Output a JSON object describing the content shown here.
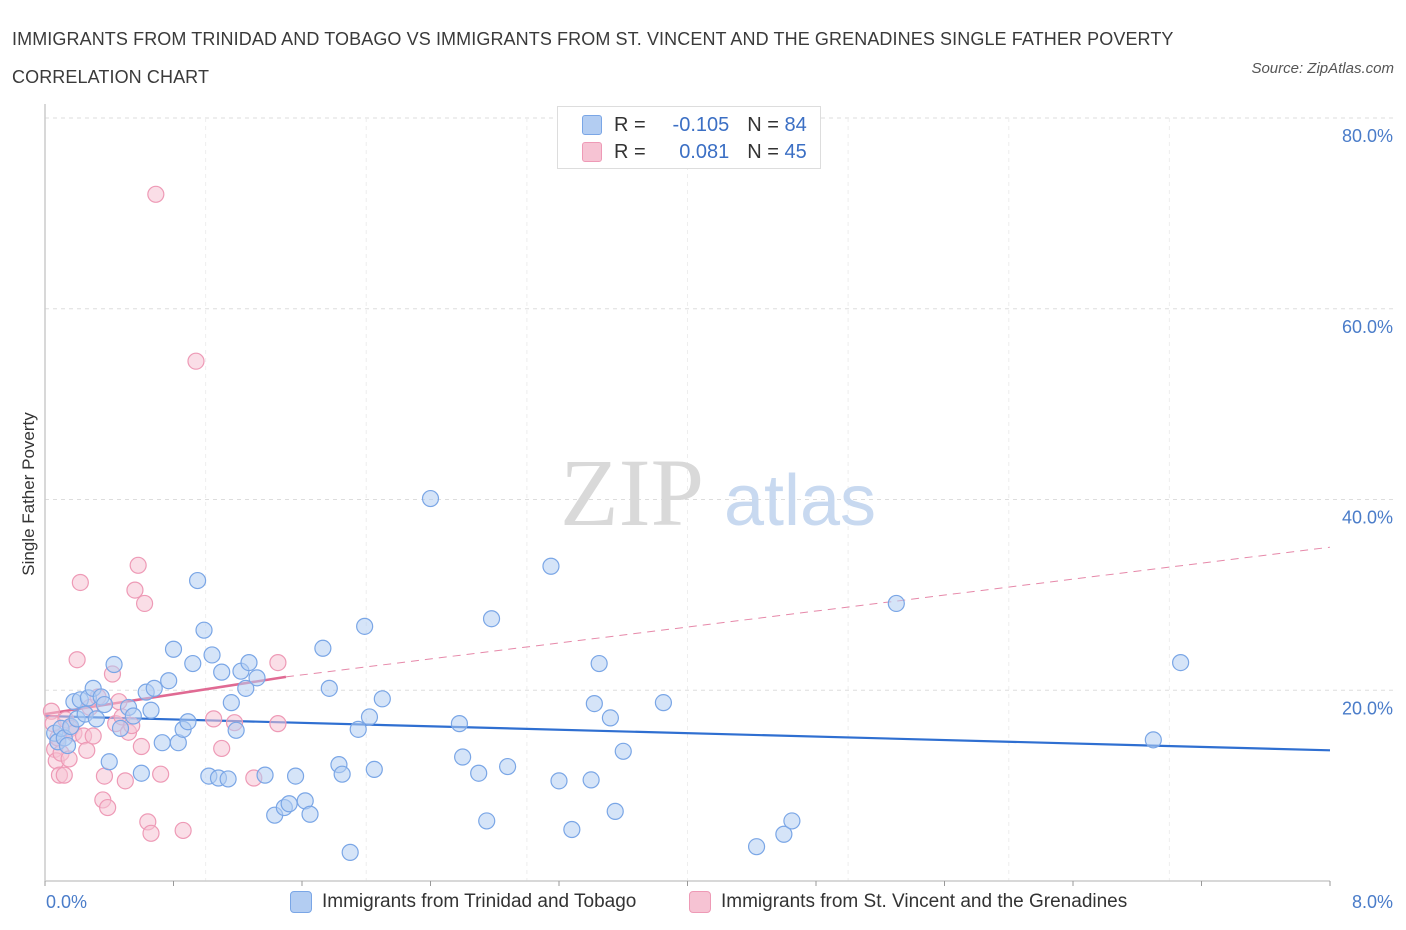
{
  "title": "IMMIGRANTS FROM TRINIDAD AND TOBAGO VS IMMIGRANTS FROM ST. VINCENT AND THE GRENADINES SINGLE FATHER POVERTY CORRELATION CHART",
  "source": "Source: ZipAtlas.com",
  "watermark": {
    "zip": "ZIP",
    "atlas": "atlas"
  },
  "legend": {
    "rows": [
      {
        "r_label": "R =",
        "r_value": "-0.105",
        "n_label": "N =",
        "n_value": "84"
      },
      {
        "r_label": "R =",
        "r_value": "0.081",
        "n_label": "N =",
        "n_value": "45"
      }
    ]
  },
  "colors": {
    "blue_fill": "#b3cdf2",
    "blue_stroke": "#7aa6e6",
    "blue_line": "#2f6fd1",
    "pink_fill": "#f6c3d3",
    "pink_stroke": "#ee9ab6",
    "pink_line": "#e06a93",
    "tick_text": "#4a7cc9",
    "grid": "#dddddd"
  },
  "chart_data": {
    "type": "scatter",
    "title": "IMMIGRANTS FROM TRINIDAD AND TOBAGO VS IMMIGRANTS FROM ST. VINCENT AND THE GRENADINES SINGLE FATHER POVERTY CORRELATION CHART",
    "xlabel": "",
    "ylabel": "Single Father Poverty",
    "xlim": [
      0,
      8
    ],
    "ylim": [
      0,
      80
    ],
    "x_tick_labels": [
      "0.0%",
      "8.0%"
    ],
    "y_tick_labels": [
      "20.0%",
      "40.0%",
      "60.0%",
      "80.0%"
    ],
    "y_ticks": [
      20,
      40,
      60,
      80
    ],
    "grid": true,
    "legend_position": "top-center",
    "series": [
      {
        "name": "Immigrants from Trinidad and Tobago",
        "r": -0.105,
        "n": 84,
        "trend": {
          "x": [
            0,
            8
          ],
          "y": [
            17.3,
            13.7
          ],
          "style": "solid"
        },
        "points": [
          [
            0.06,
            15.5
          ],
          [
            0.08,
            14.6
          ],
          [
            0.1,
            16.0
          ],
          [
            0.12,
            15.0
          ],
          [
            0.14,
            14.2
          ],
          [
            0.16,
            16.2
          ],
          [
            0.18,
            18.8
          ],
          [
            0.2,
            17.0
          ],
          [
            0.22,
            19.0
          ],
          [
            0.25,
            17.5
          ],
          [
            0.27,
            19.2
          ],
          [
            0.3,
            20.2
          ],
          [
            0.32,
            17.0
          ],
          [
            0.35,
            19.3
          ],
          [
            0.37,
            18.5
          ],
          [
            0.4,
            12.5
          ],
          [
            0.43,
            22.7
          ],
          [
            0.47,
            16.0
          ],
          [
            0.52,
            18.2
          ],
          [
            0.55,
            17.3
          ],
          [
            0.6,
            11.3
          ],
          [
            0.63,
            19.8
          ],
          [
            0.66,
            17.9
          ],
          [
            0.68,
            20.2
          ],
          [
            0.73,
            14.5
          ],
          [
            0.77,
            21.0
          ],
          [
            0.8,
            24.3
          ],
          [
            0.83,
            14.5
          ],
          [
            0.86,
            15.9
          ],
          [
            0.89,
            16.7
          ],
          [
            0.92,
            22.8
          ],
          [
            0.95,
            31.5
          ],
          [
            0.99,
            26.3
          ],
          [
            1.02,
            11.0
          ],
          [
            1.04,
            23.7
          ],
          [
            1.08,
            10.8
          ],
          [
            1.1,
            21.9
          ],
          [
            1.14,
            10.7
          ],
          [
            1.16,
            18.7
          ],
          [
            1.19,
            15.8
          ],
          [
            1.22,
            22.0
          ],
          [
            1.25,
            20.2
          ],
          [
            1.27,
            22.9
          ],
          [
            1.32,
            21.3
          ],
          [
            1.37,
            11.1
          ],
          [
            1.43,
            6.9
          ],
          [
            1.49,
            7.7
          ],
          [
            1.52,
            8.1
          ],
          [
            1.56,
            11.0
          ],
          [
            1.62,
            8.4
          ],
          [
            1.65,
            7.0
          ],
          [
            1.73,
            24.4
          ],
          [
            1.77,
            20.2
          ],
          [
            1.83,
            12.2
          ],
          [
            1.85,
            11.2
          ],
          [
            1.9,
            3.0
          ],
          [
            1.95,
            15.9
          ],
          [
            1.99,
            26.7
          ],
          [
            2.02,
            17.2
          ],
          [
            2.05,
            11.7
          ],
          [
            2.1,
            19.1
          ],
          [
            2.4,
            40.1
          ],
          [
            2.58,
            16.5
          ],
          [
            2.6,
            13.0
          ],
          [
            2.7,
            11.3
          ],
          [
            2.75,
            6.3
          ],
          [
            2.78,
            27.5
          ],
          [
            2.88,
            12.0
          ],
          [
            3.15,
            33.0
          ],
          [
            3.2,
            10.5
          ],
          [
            3.28,
            5.4
          ],
          [
            3.4,
            10.6
          ],
          [
            3.42,
            18.6
          ],
          [
            3.45,
            22.8
          ],
          [
            3.52,
            17.1
          ],
          [
            3.55,
            7.3
          ],
          [
            3.6,
            13.6
          ],
          [
            3.85,
            18.7
          ],
          [
            4.43,
            3.6
          ],
          [
            4.6,
            4.9
          ],
          [
            4.65,
            6.3
          ],
          [
            5.3,
            29.1
          ],
          [
            6.9,
            14.8
          ],
          [
            7.07,
            22.9
          ]
        ]
      },
      {
        "name": "Immigrants from St. Vincent and the Grenadines",
        "r": 0.081,
        "n": 45,
        "trend": {
          "x": [
            0,
            1.5
          ],
          "y": [
            17.5,
            21.4
          ],
          "style": "solid",
          "extended_to": [
            8,
            35.0
          ],
          "extended_style": "dashed"
        },
        "points": [
          [
            0.04,
            17.8
          ],
          [
            0.05,
            16.5
          ],
          [
            0.06,
            13.8
          ],
          [
            0.07,
            12.6
          ],
          [
            0.08,
            15.0
          ],
          [
            0.09,
            11.1
          ],
          [
            0.1,
            13.4
          ],
          [
            0.12,
            11.1
          ],
          [
            0.13,
            16.9
          ],
          [
            0.15,
            12.8
          ],
          [
            0.16,
            16.0
          ],
          [
            0.18,
            15.5
          ],
          [
            0.2,
            23.2
          ],
          [
            0.22,
            31.3
          ],
          [
            0.24,
            15.2
          ],
          [
            0.26,
            13.7
          ],
          [
            0.28,
            18.2
          ],
          [
            0.3,
            15.2
          ],
          [
            0.33,
            19.3
          ],
          [
            0.36,
            8.5
          ],
          [
            0.37,
            11.0
          ],
          [
            0.39,
            7.7
          ],
          [
            0.42,
            21.7
          ],
          [
            0.44,
            16.5
          ],
          [
            0.46,
            18.8
          ],
          [
            0.48,
            17.2
          ],
          [
            0.5,
            10.5
          ],
          [
            0.52,
            15.6
          ],
          [
            0.54,
            16.3
          ],
          [
            0.56,
            30.5
          ],
          [
            0.58,
            33.1
          ],
          [
            0.6,
            14.1
          ],
          [
            0.62,
            29.1
          ],
          [
            0.64,
            6.2
          ],
          [
            0.66,
            5.0
          ],
          [
            0.69,
            72.0
          ],
          [
            0.72,
            11.2
          ],
          [
            0.86,
            5.3
          ],
          [
            0.94,
            54.5
          ],
          [
            1.05,
            17.0
          ],
          [
            1.1,
            13.9
          ],
          [
            1.18,
            16.6
          ],
          [
            1.3,
            10.8
          ],
          [
            1.45,
            22.9
          ],
          [
            1.45,
            16.5
          ]
        ]
      }
    ]
  },
  "bottom_legend": [
    {
      "label": "Immigrants from Trinidad and Tobago"
    },
    {
      "label": "Immigrants from St. Vincent and the Grenadines"
    }
  ]
}
